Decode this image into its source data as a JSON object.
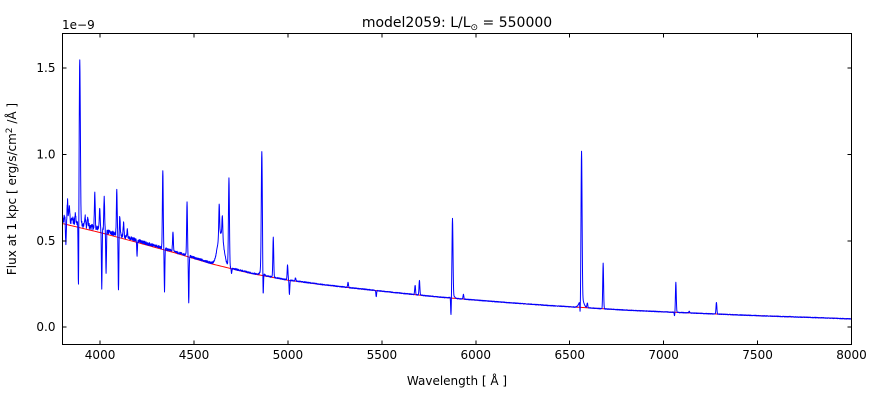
{
  "figure": {
    "title_full": "model2059: L/L⊙ = 550000"
  },
  "chart_data": {
    "type": "line",
    "title": "model2059: L/L⊙ = 550000",
    "title_parts": {
      "prefix": "model2059: L/L",
      "sun_symbol": "⊙",
      "suffix": " = 550000"
    },
    "xlabel": "Wavelength [ Å ]",
    "ylabel": "Flux at 1 kpc [ erg/s/cm² /Å ]",
    "ylabel_parts": {
      "prefix": "Flux at 1 kpc [ erg/s/cm",
      "sup": "2",
      "suffix": " /Å ]"
    },
    "y_offset_label": "1e−9",
    "xlim": [
      3800,
      8000
    ],
    "ylim": [
      -0.1,
      1.7
    ],
    "y_units_scale": "1e-9",
    "grid": false,
    "legend_position": "none",
    "x_tick_values": [
      4000,
      4500,
      5000,
      5500,
      6000,
      6500,
      7000,
      7500,
      8000
    ],
    "x_tick_labels": [
      "4000",
      "4500",
      "5000",
      "5500",
      "6000",
      "6500",
      "7000",
      "7500",
      "8000"
    ],
    "y_tick_values": [
      0.0,
      0.5,
      1.0,
      1.5
    ],
    "y_tick_labels": [
      "0.0",
      "0.5",
      "1.0",
      "1.5"
    ],
    "series": [
      {
        "name": "observed-spectrum",
        "color": "#0000ff"
      },
      {
        "name": "continuum-fit",
        "color": "#ff0000"
      }
    ],
    "axis_color": "#000000",
    "continuum_points": [
      [
        3800,
        0.6
      ],
      [
        4000,
        0.548
      ],
      [
        4200,
        0.49
      ],
      [
        4400,
        0.43
      ],
      [
        4600,
        0.365
      ],
      [
        4800,
        0.312
      ],
      [
        5000,
        0.272
      ],
      [
        5200,
        0.244
      ],
      [
        5400,
        0.22
      ],
      [
        5600,
        0.197
      ],
      [
        5800,
        0.175
      ],
      [
        6000,
        0.157
      ],
      [
        6200,
        0.14
      ],
      [
        6400,
        0.125
      ],
      [
        6600,
        0.112
      ],
      [
        6800,
        0.099
      ],
      [
        7000,
        0.089
      ],
      [
        7200,
        0.08
      ],
      [
        7400,
        0.071
      ],
      [
        7600,
        0.063
      ],
      [
        7800,
        0.056
      ],
      [
        8000,
        0.048
      ]
    ],
    "emission_lines": [
      {
        "wavelength": 3827,
        "peak": 0.73
      },
      {
        "wavelength": 3836,
        "peak": 0.7
      },
      {
        "wavelength": 3852,
        "peak": 0.64
      },
      {
        "wavelength": 3869,
        "peak": 0.66
      },
      {
        "wavelength": 3892,
        "peak": 1.55,
        "sigma": 3
      },
      {
        "wavelength": 3920,
        "peak": 0.64
      },
      {
        "wavelength": 3935,
        "peak": 0.63
      },
      {
        "wavelength": 3972,
        "peak": 0.78
      },
      {
        "wavelength": 3998,
        "peak": 0.7
      },
      {
        "wavelength": 4022,
        "peak": 0.76
      },
      {
        "wavelength": 4089,
        "peak": 0.79
      },
      {
        "wavelength": 4105,
        "peak": 0.645
      },
      {
        "wavelength": 4125,
        "peak": 0.6
      },
      {
        "wavelength": 4145,
        "peak": 0.57
      },
      {
        "wavelength": 4334,
        "peak": 0.91
      },
      {
        "wavelength": 4388,
        "peak": 0.55
      },
      {
        "wavelength": 4463,
        "peak": 0.72
      },
      {
        "wavelength": 4634,
        "peak": 0.71
      },
      {
        "wavelength": 4651,
        "peak": 0.65
      },
      {
        "wavelength": 4686,
        "peak": 0.86,
        "sigma": 2.6
      },
      {
        "wavelength": 4861,
        "peak": 1.02,
        "sigma": 2.8
      },
      {
        "wavelength": 4922,
        "peak": 0.52
      },
      {
        "wavelength": 4998,
        "peak": 0.36
      },
      {
        "wavelength": 5040,
        "peak": 0.285
      },
      {
        "wavelength": 5320,
        "peak": 0.26
      },
      {
        "wavelength": 5677,
        "peak": 0.243
      },
      {
        "wavelength": 5700,
        "peak": 0.27
      },
      {
        "wavelength": 5876,
        "peak": 0.63,
        "sigma": 2.6
      },
      {
        "wavelength": 5934,
        "peak": 0.19
      },
      {
        "wavelength": 6191,
        "peak": 0.14
      },
      {
        "wavelength": 6333,
        "peak": 0.128
      },
      {
        "wavelength": 6395,
        "peak": 0.121
      },
      {
        "wavelength": 6563,
        "peak": 1.02,
        "sigma": 2.8
      },
      {
        "wavelength": 6594,
        "peak": 0.14
      },
      {
        "wavelength": 6678,
        "peak": 0.37
      },
      {
        "wavelength": 7065,
        "peak": 0.26
      },
      {
        "wavelength": 7136,
        "peak": 0.092
      },
      {
        "wavelength": 7281,
        "peak": 0.145
      },
      {
        "wavelength": 7672,
        "peak": 0.062
      }
    ],
    "absorption_lines": [
      {
        "wavelength": 3818,
        "min": 0.46
      },
      {
        "wavelength": 3885,
        "min": 0.2
      },
      {
        "wavelength": 4009,
        "min": 0.22
      },
      {
        "wavelength": 4032,
        "min": 0.31
      },
      {
        "wavelength": 4098,
        "min": 0.21
      },
      {
        "wavelength": 4197,
        "min": 0.42
      },
      {
        "wavelength": 4343,
        "min": 0.21
      },
      {
        "wavelength": 4472,
        "min": 0.14
      },
      {
        "wavelength": 4700,
        "min": 0.31
      },
      {
        "wavelength": 4868,
        "min": 0.17
      },
      {
        "wavelength": 5008,
        "min": 0.19
      },
      {
        "wavelength": 5470,
        "min": 0.175
      },
      {
        "wavelength": 5868,
        "min": 0.07
      },
      {
        "wavelength": 6556,
        "min": 0.07
      },
      {
        "wavelength": 7058,
        "min": 0.065
      }
    ],
    "broad_bumps": [
      {
        "center": 4642,
        "sigma": 16,
        "amplitude": 0.19
      },
      {
        "center": 4861,
        "sigma": 8,
        "amplitude": 0.03
      },
      {
        "center": 5876,
        "sigma": 8,
        "amplitude": 0.02
      },
      {
        "center": 6563,
        "sigma": 11,
        "amplitude": 0.05
      }
    ],
    "noise": {
      "base_amplitude": 0.02,
      "decay_scale": 450,
      "floor": 0.002,
      "seed": 42
    },
    "blue_excess": {
      "amplitude": 0.03,
      "decay_scale": 400
    }
  }
}
